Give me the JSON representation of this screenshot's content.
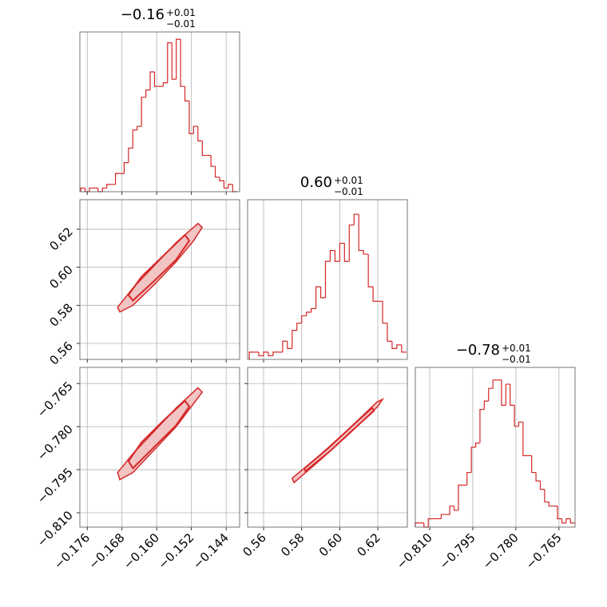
{
  "chart_data": {
    "type": "corner",
    "color": "#d62728",
    "fill": "#f2c4c4",
    "grid": true,
    "params": [
      {
        "title": "−0.16",
        "title_upper": "+0.01",
        "title_lower": "−0.01",
        "lim": [
          -0.1777,
          -0.1409
        ],
        "ticks": [
          {
            "value": -0.176,
            "label": "−0.176"
          },
          {
            "value": -0.168,
            "label": "−0.168"
          },
          {
            "value": -0.16,
            "label": "−0.160"
          },
          {
            "value": -0.152,
            "label": "−0.152"
          },
          {
            "value": -0.144,
            "label": "−0.144"
          }
        ],
        "hist_ylim": [
          0,
          44
        ],
        "bins": [
          -0.1775,
          -0.1765,
          -0.1755,
          -0.1745,
          -0.1735,
          -0.1725,
          -0.1715,
          -0.1705,
          -0.1695,
          -0.1685,
          -0.1675,
          -0.1665,
          -0.1655,
          -0.1645,
          -0.1635,
          -0.1625,
          -0.1615,
          -0.1605,
          -0.1595,
          -0.1585,
          -0.1575,
          -0.1565,
          -0.1555,
          -0.1545,
          -0.1535,
          -0.1525,
          -0.1515,
          -0.1505,
          -0.1495,
          -0.1485,
          -0.1475,
          -0.1465,
          -0.1455,
          -0.1445,
          -0.1435,
          -0.1425,
          -0.1415
        ],
        "counts": [
          1,
          0,
          1,
          1,
          0,
          1,
          2,
          2,
          5,
          5,
          8,
          12,
          17,
          18,
          26,
          28,
          33,
          29,
          29,
          30,
          41,
          31,
          42,
          29,
          25,
          16,
          18,
          14,
          10,
          10,
          7,
          4,
          3,
          1,
          2,
          0
        ]
      },
      {
        "title": "0.60",
        "title_upper": "+0.01",
        "title_lower": "−0.01",
        "lim": [
          0.5516,
          0.6355
        ],
        "ticks": [
          0.56,
          0.58,
          {
            "value": 0.6,
            "label": "0.60"
          },
          0.62
        ],
        "hist_ylim": [
          0,
          44
        ],
        "bins": [
          0.5525,
          0.555,
          0.5575,
          0.56,
          0.5625,
          0.565,
          0.5675,
          0.57,
          0.5725,
          0.575,
          0.5775,
          0.58,
          0.5825,
          0.585,
          0.5875,
          0.59,
          0.5925,
          0.595,
          0.5975,
          0.6,
          0.6025,
          0.605,
          0.6075,
          0.61,
          0.6125,
          0.615,
          0.6175,
          0.62,
          0.6225,
          0.625,
          0.6275,
          0.63,
          0.6325,
          0.635
        ],
        "counts": [
          2,
          2,
          1,
          2,
          1,
          2,
          2,
          5,
          3,
          8,
          10,
          12,
          13,
          14,
          20,
          17,
          27,
          30,
          27,
          32,
          27,
          37,
          40,
          30,
          29,
          20,
          16,
          16,
          10,
          5,
          3,
          4,
          2
        ]
      },
      {
        "title": "−0.78",
        "title_upper": "+0.01",
        "title_lower": "−0.01",
        "lim": [
          -0.815,
          -0.7594
        ],
        "ticks": [
          {
            "value": -0.81,
            "label": "−0.810"
          },
          {
            "value": -0.795,
            "label": "−0.795"
          },
          {
            "value": -0.78,
            "label": "−0.780"
          },
          {
            "value": -0.765,
            "label": "−0.765"
          }
        ],
        "hist_ylim": [
          0,
          38
        ],
        "bins": [
          -0.815,
          -0.8135,
          -0.812,
          -0.8105,
          -0.809,
          -0.8075,
          -0.806,
          -0.8045,
          -0.803,
          -0.8015,
          -0.8,
          -0.7985,
          -0.797,
          -0.7955,
          -0.794,
          -0.7925,
          -0.791,
          -0.7895,
          -0.788,
          -0.7865,
          -0.785,
          -0.7835,
          -0.782,
          -0.7805,
          -0.779,
          -0.7775,
          -0.776,
          -0.7745,
          -0.773,
          -0.7715,
          -0.77,
          -0.7685,
          -0.767,
          -0.7655,
          -0.764,
          -0.7625,
          -0.761,
          -0.7595
        ],
        "counts": [
          1,
          1,
          0,
          2,
          2,
          2,
          3,
          3,
          5,
          4,
          10,
          10,
          13,
          19,
          20,
          28,
          30,
          33,
          35,
          35,
          29,
          34,
          29,
          24,
          25,
          17,
          17,
          13,
          11,
          9,
          6,
          5,
          5,
          2,
          1,
          2,
          1
        ]
      }
    ],
    "pairs": [
      {
        "x": 0,
        "y": 1,
        "contours": [
          {
            "x": [
              -0.1685,
              -0.1655,
              -0.1605,
              -0.1555,
              -0.1515,
              -0.1495,
              -0.1505,
              -0.1555,
              -0.1605,
              -0.1655,
              -0.169
            ],
            "y": [
              0.5765,
              0.58,
              0.591,
              0.603,
              0.614,
              0.621,
              0.623,
              0.613,
              0.601,
              0.589,
              0.579
            ]
          },
          {
            "x": [
              -0.1655,
              -0.1605,
              -0.1555,
              -0.1525,
              -0.1535,
              -0.1585,
              -0.1635,
              -0.1665
            ],
            "y": [
              0.5825,
              0.593,
              0.604,
              0.614,
              0.617,
              0.606,
              0.595,
              0.5855
            ]
          }
        ]
      },
      {
        "x": 0,
        "y": 2,
        "contours": [
          {
            "x": [
              -0.1685,
              -0.1655,
              -0.1605,
              -0.1555,
              -0.1515,
              -0.1495,
              -0.1505,
              -0.1555,
              -0.1605,
              -0.1655,
              -0.169
            ],
            "y": [
              -0.7985,
              -0.796,
              -0.788,
              -0.78,
              -0.772,
              -0.768,
              -0.7665,
              -0.7735,
              -0.7815,
              -0.7895,
              -0.796
            ]
          },
          {
            "x": [
              -0.1655,
              -0.1605,
              -0.1555,
              -0.1525,
              -0.1535,
              -0.1585,
              -0.1635,
              -0.1665
            ],
            "y": [
              -0.7945,
              -0.787,
              -0.7795,
              -0.773,
              -0.771,
              -0.778,
              -0.7855,
              -0.792
            ]
          }
        ]
      },
      {
        "x": 1,
        "y": 2,
        "contours": [
          {
            "x": [
              0.576,
              0.59,
              0.605,
              0.62,
              0.6225,
              0.6195,
              0.6045,
              0.5895,
              0.575
            ],
            "y": [
              -0.7995,
              -0.7915,
              -0.7825,
              -0.773,
              -0.7705,
              -0.7715,
              -0.781,
              -0.79,
              -0.798
            ]
          },
          {
            "x": [
              0.582,
              0.595,
              0.608,
              0.618,
              0.617,
              0.607,
              0.594,
              0.5815
            ],
            "y": [
              -0.7955,
              -0.7885,
              -0.7805,
              -0.7745,
              -0.7735,
              -0.7795,
              -0.7875,
              -0.7945
            ]
          }
        ]
      }
    ]
  }
}
